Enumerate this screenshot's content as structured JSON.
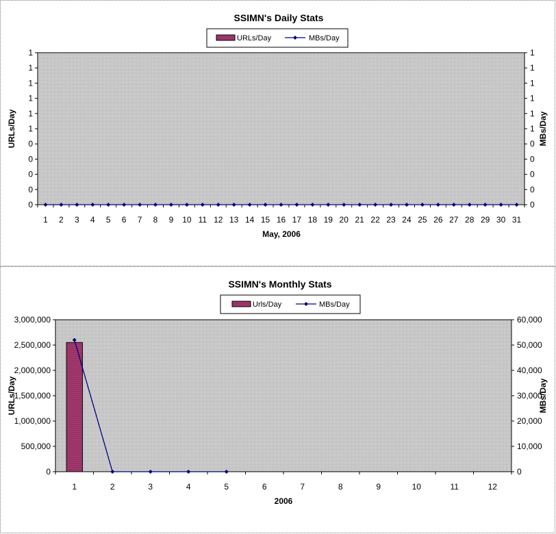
{
  "colors": {
    "plot_bg": "#c8c8c8",
    "bar": "#993366",
    "line": "#000080",
    "grid": "#000000"
  },
  "chart_data": [
    {
      "type": "bar",
      "title": "SSIMN's Daily Stats",
      "xlabel": "May, 2006",
      "ylabel": "URLs/Day",
      "ylabel2": "MBs/Day",
      "legend": {
        "placement": "top-center",
        "entries": [
          "URLs/Day",
          "MBs/Day"
        ]
      },
      "categories": [
        "1",
        "2",
        "3",
        "4",
        "5",
        "6",
        "7",
        "8",
        "9",
        "10",
        "11",
        "12",
        "13",
        "14",
        "15",
        "16",
        "17",
        "18",
        "19",
        "20",
        "21",
        "22",
        "23",
        "24",
        "25",
        "26",
        "27",
        "28",
        "29",
        "30",
        "31"
      ],
      "y_ticks": [
        "0",
        "0",
        "0",
        "0",
        "0",
        "1",
        "1",
        "1",
        "1",
        "1",
        "1"
      ],
      "y2_ticks": [
        "0",
        "0",
        "0",
        "0",
        "0",
        "1",
        "1",
        "1",
        "1",
        "1",
        "1"
      ],
      "ylim": [
        0,
        1
      ],
      "y2lim": [
        0,
        1
      ],
      "series": [
        {
          "name": "URLs/Day",
          "kind": "bar",
          "axis": "left",
          "values": [
            0,
            0,
            0,
            0,
            0,
            0,
            0,
            0,
            0,
            0,
            0,
            0,
            0,
            0,
            0,
            0,
            0,
            0,
            0,
            0,
            0,
            0,
            0,
            0,
            0,
            0,
            0,
            0,
            0,
            0,
            0
          ]
        },
        {
          "name": "MBs/Day",
          "kind": "line",
          "axis": "right",
          "values": [
            0,
            0,
            0,
            0,
            0,
            0,
            0,
            0,
            0,
            0,
            0,
            0,
            0,
            0,
            0,
            0,
            0,
            0,
            0,
            0,
            0,
            0,
            0,
            0,
            0,
            0,
            0,
            0,
            0,
            0,
            0
          ]
        }
      ]
    },
    {
      "type": "bar",
      "title": "SSIMN's Monthly Stats",
      "xlabel": "2006",
      "ylabel": "URLs/Day",
      "ylabel2": "MBs/Day",
      "legend": {
        "placement": "top-center",
        "entries": [
          "Urls/Day",
          "MBs/Day"
        ]
      },
      "categories": [
        "1",
        "2",
        "3",
        "4",
        "5",
        "6",
        "7",
        "8",
        "9",
        "10",
        "11",
        "12"
      ],
      "y_ticks": [
        "0",
        "500,000",
        "1,000,000",
        "1,500,000",
        "2,000,000",
        "2,500,000",
        "3,000,000"
      ],
      "y2_ticks": [
        "0",
        "10,000",
        "20,000",
        "30,000",
        "40,000",
        "50,000",
        "60,000"
      ],
      "ylim": [
        0,
        3000000
      ],
      "y2lim": [
        0,
        60000
      ],
      "series": [
        {
          "name": "Urls/Day",
          "kind": "bar",
          "axis": "left",
          "values": [
            2550000,
            0,
            0,
            0,
            0,
            null,
            null,
            null,
            null,
            null,
            null,
            null
          ]
        },
        {
          "name": "MBs/Day",
          "kind": "line",
          "axis": "right",
          "values": [
            52000,
            0,
            0,
            0,
            0,
            null,
            null,
            null,
            null,
            null,
            null,
            null
          ]
        }
      ]
    }
  ]
}
